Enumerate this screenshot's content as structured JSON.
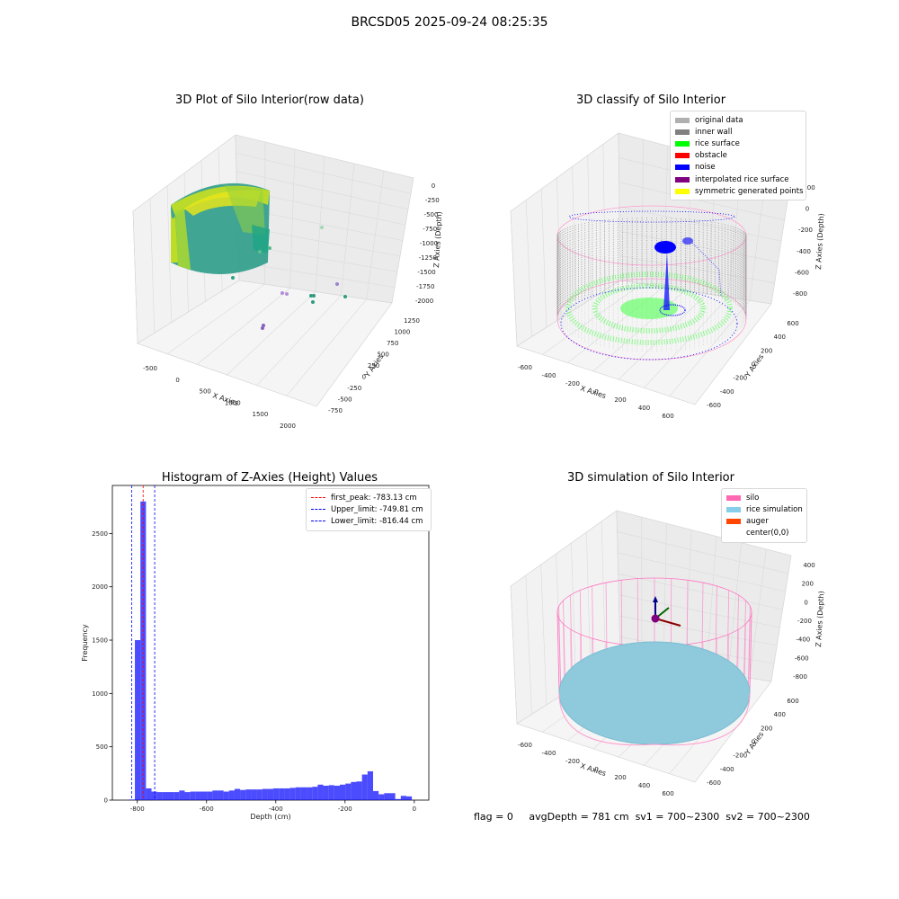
{
  "suptitle": "BRCSD05 2025-09-24 08:25:35",
  "chart_data": [
    {
      "type": "scatter",
      "title": "3D Plot of Silo Interior(row data)",
      "xlabel": "X Axies",
      "ylabel": "Y Axies",
      "zlabel": "Z Axies (Depth)",
      "xticks": [
        "-500",
        "0",
        "500",
        "1000",
        "1500",
        "2000"
      ],
      "yticks": [
        "-750",
        "-500",
        "-250",
        "0",
        "250",
        "500",
        "750",
        "1000",
        "1250"
      ],
      "zticks": [
        "0",
        "-250",
        "-500",
        "-750",
        "-1000",
        "-1250",
        "-1500",
        "-1750",
        "-2000"
      ],
      "colormap": "viridis",
      "outliers": [
        {
          "x": 1050,
          "y": 700,
          "z": -680
        },
        {
          "x": 500,
          "y": -50,
          "z": -1700
        },
        {
          "x": 1350,
          "y": 500,
          "z": -1750
        },
        {
          "x": 1500,
          "y": -50,
          "z": -1820
        },
        {
          "x": 1100,
          "y": -400,
          "z": -1900
        }
      ]
    },
    {
      "type": "scatter",
      "title": "3D classify of Silo Interior",
      "xlabel": "X Axies",
      "ylabel": "Y Axies",
      "zlabel": "Z Axies (Depth)",
      "xticks": [
        "-600",
        "-400",
        "-200",
        "0",
        "200",
        "400",
        "600"
      ],
      "yticks": [
        "-600",
        "-400",
        "-200",
        "0",
        "200",
        "400",
        "600"
      ],
      "zticks": [
        "200",
        "0",
        "-200",
        "-400",
        "-600",
        "-800"
      ],
      "legend": [
        {
          "label": "original data",
          "color": "#b0b0b0"
        },
        {
          "label": "inner wall",
          "color": "#808080"
        },
        {
          "label": "rice surface",
          "color": "#00ff00"
        },
        {
          "label": "obstacle",
          "color": "#ff0000"
        },
        {
          "label": "noise",
          "color": "#0000ff"
        },
        {
          "label": "interpolated rice surface",
          "color": "#800080"
        },
        {
          "label": "symmetric generated points",
          "color": "#ffff00"
        }
      ]
    },
    {
      "type": "bar",
      "title": "Histogram of Z-Axies (Height) Values",
      "xlabel": "Depth (cm)",
      "ylabel": "Frequency",
      "xlim": [
        -872,
        42
      ],
      "ylim": [
        0,
        2950
      ],
      "xticks": [
        "-800",
        "-600",
        "-400",
        "-200",
        "0"
      ],
      "yticks": [
        "0",
        "500",
        "1000",
        "1500",
        "2000",
        "2500"
      ],
      "bar_color": "#0000ff",
      "bins": [
        {
          "x0": -823,
          "x1": -807,
          "count": 5
        },
        {
          "x0": -807,
          "x1": -791,
          "count": 1500
        },
        {
          "x0": -791,
          "x1": -775,
          "count": 2800
        },
        {
          "x0": -775,
          "x1": -759,
          "count": 110
        },
        {
          "x0": -759,
          "x1": -743,
          "count": 80
        },
        {
          "x0": -743,
          "x1": -727,
          "count": 75
        },
        {
          "x0": -727,
          "x1": -711,
          "count": 75
        },
        {
          "x0": -711,
          "x1": -695,
          "count": 75
        },
        {
          "x0": -695,
          "x1": -679,
          "count": 75
        },
        {
          "x0": -679,
          "x1": -663,
          "count": 90
        },
        {
          "x0": -663,
          "x1": -647,
          "count": 75
        },
        {
          "x0": -647,
          "x1": -631,
          "count": 80
        },
        {
          "x0": -631,
          "x1": -615,
          "count": 80
        },
        {
          "x0": -615,
          "x1": -599,
          "count": 80
        },
        {
          "x0": -599,
          "x1": -583,
          "count": 80
        },
        {
          "x0": -583,
          "x1": -567,
          "count": 90
        },
        {
          "x0": -567,
          "x1": -551,
          "count": 90
        },
        {
          "x0": -551,
          "x1": -535,
          "count": 80
        },
        {
          "x0": -535,
          "x1": -519,
          "count": 90
        },
        {
          "x0": -519,
          "x1": -503,
          "count": 105
        },
        {
          "x0": -503,
          "x1": -487,
          "count": 95
        },
        {
          "x0": -487,
          "x1": -471,
          "count": 100
        },
        {
          "x0": -471,
          "x1": -455,
          "count": 100
        },
        {
          "x0": -455,
          "x1": -439,
          "count": 100
        },
        {
          "x0": -439,
          "x1": -423,
          "count": 105
        },
        {
          "x0": -423,
          "x1": -407,
          "count": 105
        },
        {
          "x0": -407,
          "x1": -391,
          "count": 110
        },
        {
          "x0": -391,
          "x1": -375,
          "count": 110
        },
        {
          "x0": -375,
          "x1": -359,
          "count": 110
        },
        {
          "x0": -359,
          "x1": -343,
          "count": 115
        },
        {
          "x0": -343,
          "x1": -327,
          "count": 120
        },
        {
          "x0": -327,
          "x1": -311,
          "count": 120
        },
        {
          "x0": -311,
          "x1": -295,
          "count": 120
        },
        {
          "x0": -295,
          "x1": -279,
          "count": 125
        },
        {
          "x0": -279,
          "x1": -263,
          "count": 145
        },
        {
          "x0": -263,
          "x1": -247,
          "count": 135
        },
        {
          "x0": -247,
          "x1": -231,
          "count": 140
        },
        {
          "x0": -231,
          "x1": -215,
          "count": 135
        },
        {
          "x0": -215,
          "x1": -199,
          "count": 145
        },
        {
          "x0": -199,
          "x1": -183,
          "count": 155
        },
        {
          "x0": -183,
          "x1": -167,
          "count": 170
        },
        {
          "x0": -167,
          "x1": -151,
          "count": 175
        },
        {
          "x0": -151,
          "x1": -135,
          "count": 240
        },
        {
          "x0": -135,
          "x1": -119,
          "count": 270
        },
        {
          "x0": -119,
          "x1": -103,
          "count": 85
        },
        {
          "x0": -103,
          "x1": -87,
          "count": 55
        },
        {
          "x0": -87,
          "x1": -71,
          "count": 65
        },
        {
          "x0": -71,
          "x1": -55,
          "count": 65
        },
        {
          "x0": -55,
          "x1": -39,
          "count": 10
        },
        {
          "x0": -39,
          "x1": -23,
          "count": 40
        },
        {
          "x0": -23,
          "x1": -7,
          "count": 35
        }
      ],
      "lines": [
        {
          "label": "first_peak: -783.13 cm",
          "x": -783.13,
          "color": "#ff0000"
        },
        {
          "label": "Upper_limit: -749.81 cm",
          "x": -749.81,
          "color": "#0000ff"
        },
        {
          "label": "Lower_limit: -816.44 cm",
          "x": -816.44,
          "color": "#0000ff"
        }
      ]
    },
    {
      "type": "scatter",
      "title": "3D simulation of Silo Interior",
      "xlabel": "X Axies",
      "ylabel": "Y Axies",
      "zlabel": "Z Axies (Depth)",
      "xticks": [
        "-600",
        "-400",
        "-200",
        "0",
        "200",
        "400",
        "600"
      ],
      "yticks": [
        "-600",
        "-400",
        "-200",
        "0",
        "200",
        "400",
        "600"
      ],
      "zticks": [
        "400",
        "200",
        "0",
        "-200",
        "-400",
        "-600",
        "-800"
      ],
      "legend": [
        {
          "label": "silo",
          "color": "#ff69b4"
        },
        {
          "label": "rice simulation",
          "color": "#87ceeb"
        },
        {
          "label": "auger",
          "color": "#ff4500"
        },
        {
          "label": "center(0,0)",
          "color": "#ffffff"
        }
      ]
    }
  ],
  "footer": {
    "flag": "flag = 0",
    "avg": "avgDepth = 781 cm",
    "sv1": "sv1 = 700~2300",
    "sv2": "sv2 = 700~2300"
  }
}
